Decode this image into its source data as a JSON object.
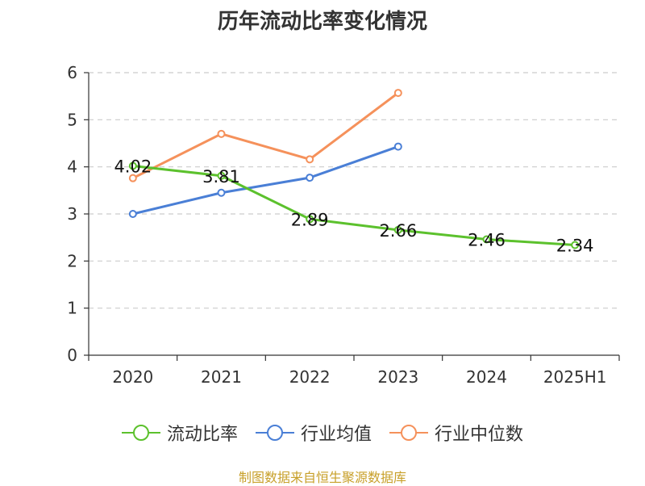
{
  "chart_data": {
    "type": "line",
    "title": "历年流动比率变化情况",
    "categories": [
      "2020",
      "2021",
      "2022",
      "2023",
      "2024",
      "2025H1"
    ],
    "ylim": [
      0,
      6
    ],
    "yticks": [
      0,
      1,
      2,
      3,
      4,
      5,
      6
    ],
    "grid": true,
    "legend_position": "bottom",
    "series": [
      {
        "name": "流动比率",
        "color": "#5cc12d",
        "values": [
          4.02,
          3.81,
          2.89,
          2.66,
          2.46,
          2.34
        ],
        "labels": [
          "4.02",
          "3.81",
          "2.89",
          "2.66",
          "2.46",
          "2.34"
        ]
      },
      {
        "name": "行业均值",
        "color": "#4a7fd6",
        "values": [
          3.0,
          3.45,
          3.77,
          4.43,
          null,
          null
        ]
      },
      {
        "name": "行业中位数",
        "color": "#f5915b",
        "values": [
          3.76,
          4.7,
          4.16,
          5.57,
          null,
          null
        ]
      }
    ]
  },
  "source": "制图数据来自恒生聚源数据库"
}
